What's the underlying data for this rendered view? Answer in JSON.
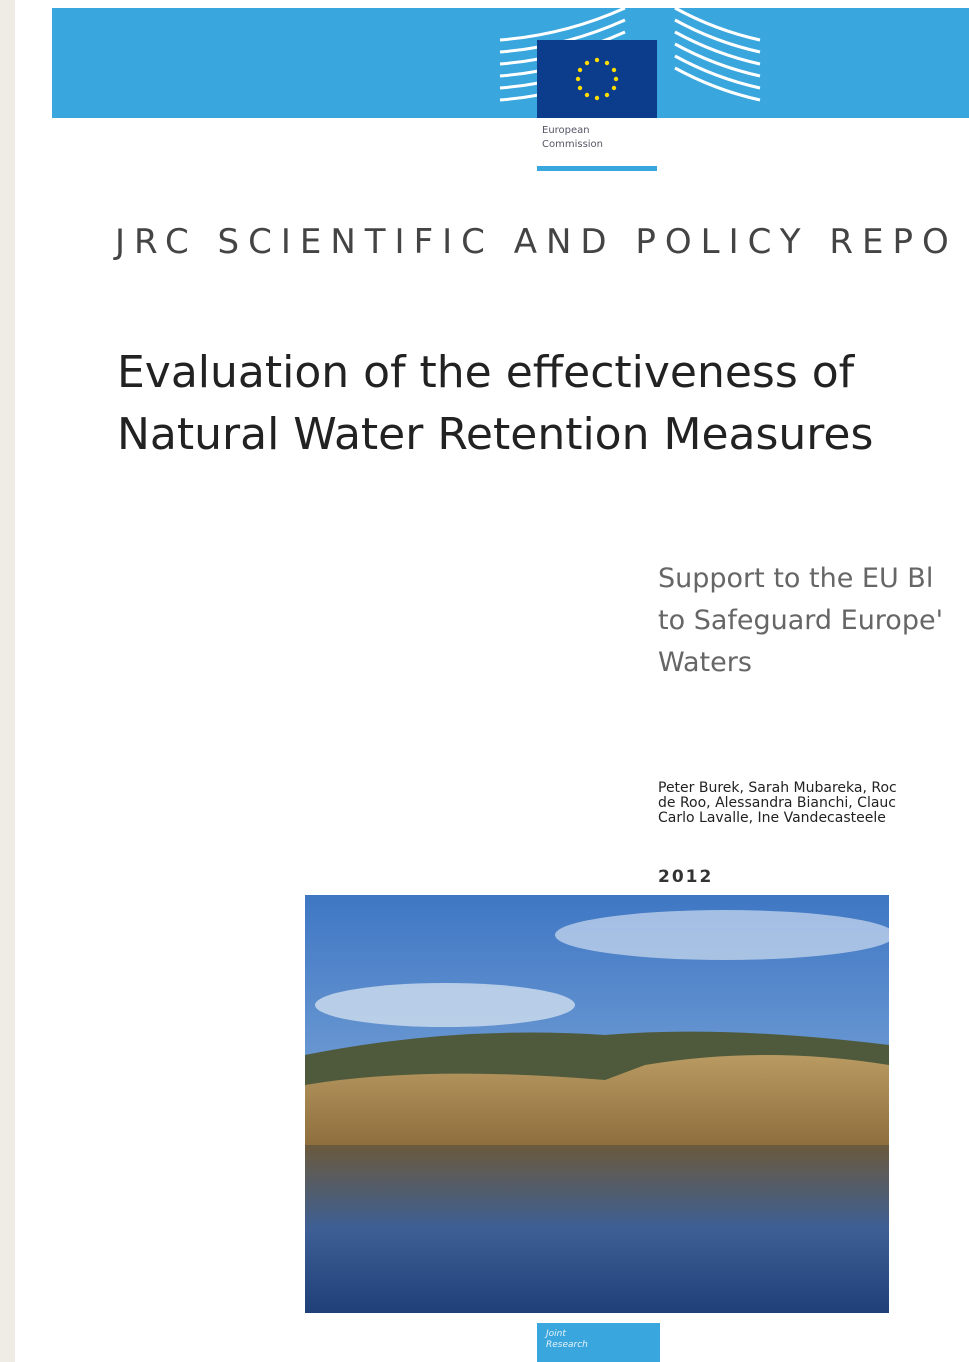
{
  "header": {
    "logo_text": [
      "European",
      "Commission"
    ],
    "series": "JRC SCIENTIFIC AND POLICY REPO"
  },
  "title": [
    "Evaluation of the effectiveness of",
    "Natural Water Retention Measures"
  ],
  "subtitle": [
    "Support to the EU Bl",
    "to Safeguard Europe'",
    "Waters"
  ],
  "authors": [
    "Peter Burek, Sarah Mubareka, Roc",
    "de Roo, Alessandra Bianchi, Clauc",
    "Carlo Lavalle, Ine Vandecasteele"
  ],
  "year": "2012",
  "footer": {
    "logo_text": [
      "Joint",
      "Research"
    ]
  }
}
